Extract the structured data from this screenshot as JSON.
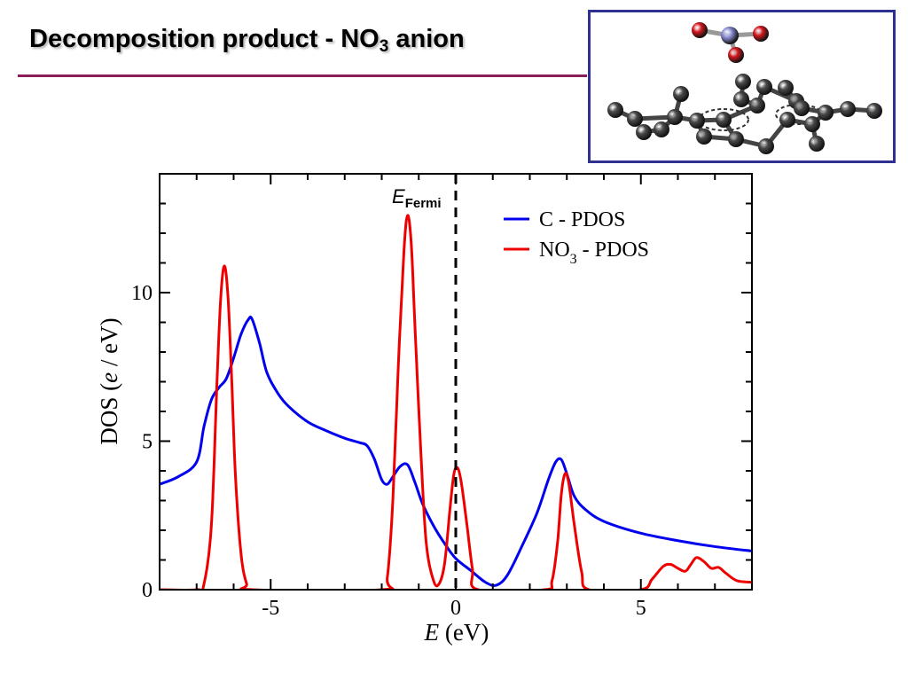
{
  "slide": {
    "title_prefix": "Decomposition product - NO",
    "title_subscript": "3",
    "title_suffix": " anion",
    "rule_color": "#8c1d5c",
    "frame_color": "#2e3192"
  },
  "molecule": {
    "atoms": {
      "carbon_color": "#4a4a4a",
      "oxygen_color": "#d71920",
      "nitrogen_color": "#8c90d8"
    }
  },
  "chart_data": {
    "type": "line",
    "xlabel_italic": "E",
    "xlabel_unit": " (eV)",
    "ylabel_prefix": "DOS (",
    "ylabel_italic": "e",
    "ylabel_suffix": " / eV)",
    "xlim": [
      -8,
      8
    ],
    "ylim": [
      0,
      14
    ],
    "x_ticks": [
      -5,
      0,
      5
    ],
    "y_ticks": [
      0,
      5,
      10
    ],
    "fermi": {
      "x": 0,
      "label_main": "E",
      "label_sub": "Fermi"
    },
    "legend_position": "top-right",
    "series": [
      {
        "name": "C - PDOS",
        "color": "#0000ee",
        "x": [
          -8,
          -7.5,
          -7,
          -6.8,
          -6.6,
          -6.4,
          -6.2,
          -6.0,
          -5.8,
          -5.6,
          -5.5,
          -5.3,
          -5.1,
          -4.8,
          -4.5,
          -4,
          -3.5,
          -3,
          -2.6,
          -2.4,
          -2.2,
          -2,
          -1.85,
          -1.7,
          -1.5,
          -1.3,
          -1.1,
          -0.9,
          -0.6,
          -0.3,
          0,
          0.4,
          0.8,
          1.1,
          1.4,
          1.8,
          2.2,
          2.5,
          2.7,
          2.85,
          3.0,
          3.2,
          3.5,
          4,
          5,
          6,
          7,
          8
        ],
        "y": [
          3.55,
          3.8,
          4.3,
          5.5,
          6.4,
          6.8,
          7.1,
          7.8,
          8.6,
          9.1,
          9.1,
          8.3,
          7.3,
          6.6,
          6.15,
          5.65,
          5.35,
          5.1,
          4.95,
          4.85,
          4.4,
          3.7,
          3.55,
          3.8,
          4.15,
          4.2,
          3.6,
          2.9,
          2.15,
          1.55,
          1.05,
          0.65,
          0.25,
          0.15,
          0.5,
          1.5,
          2.6,
          3.7,
          4.3,
          4.38,
          3.9,
          3.15,
          2.7,
          2.3,
          1.9,
          1.65,
          1.45,
          1.3
        ]
      },
      {
        "name": "NO",
        "name_subscript": "3",
        "name_suffix": " - PDOS",
        "color": "#ee0000",
        "x": [
          -8,
          -7,
          -6.8,
          -6.6,
          -6.45,
          -6.35,
          -6.25,
          -6.15,
          -6.05,
          -5.95,
          -5.8,
          -5.65,
          -5.5,
          -2,
          -1.85,
          -1.7,
          -1.55,
          -1.4,
          -1.3,
          -1.2,
          -1.1,
          -0.95,
          -0.8,
          -0.6,
          -0.45,
          -0.3,
          -0.15,
          -0.05,
          0.05,
          0.15,
          0.3,
          0.45,
          0.6,
          2.4,
          2.6,
          2.75,
          2.85,
          2.95,
          3.05,
          3.2,
          3.4,
          3.6,
          5,
          5.3,
          5.6,
          5.8,
          6.0,
          6.2,
          6.35,
          6.5,
          6.7,
          6.9,
          7.1,
          7.3,
          7.6,
          8
        ],
        "y": [
          0,
          0,
          0.2,
          2.2,
          7.0,
          9.8,
          10.9,
          9.8,
          7.0,
          3.8,
          1.2,
          0.2,
          0,
          0,
          0.4,
          3.0,
          7.6,
          11.4,
          12.6,
          11.6,
          8.8,
          4.8,
          1.6,
          0.3,
          0.2,
          0.9,
          2.8,
          3.9,
          4.1,
          3.6,
          2.2,
          0.7,
          0,
          0,
          0.3,
          1.6,
          3.2,
          3.9,
          3.6,
          2.2,
          0.6,
          0,
          0,
          0.35,
          0.78,
          0.85,
          0.72,
          0.62,
          0.85,
          1.08,
          0.95,
          0.72,
          0.75,
          0.55,
          0.3,
          0.25
        ]
      }
    ]
  }
}
